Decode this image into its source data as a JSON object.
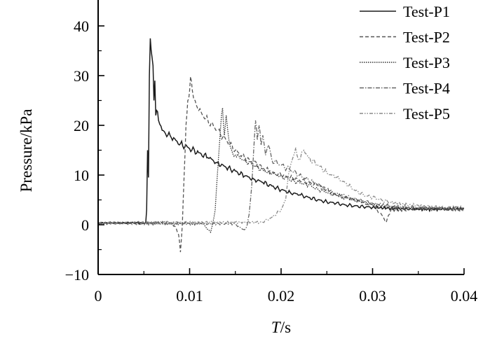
{
  "chart_data": {
    "type": "line",
    "title": "",
    "xlabel_italic": "T",
    "xlabel_unit": "/s",
    "ylabel": "Pressure/kPa",
    "xlim": [
      0,
      0.04
    ],
    "ylim": [
      -10,
      45
    ],
    "x_ticks": [
      0,
      0.01,
      0.02,
      0.03,
      0.04
    ],
    "x_tick_labels": [
      "0",
      "0.01",
      "0.02",
      "0.03",
      "0.04"
    ],
    "y_ticks": [
      -10,
      0,
      10,
      20,
      30,
      40
    ],
    "y_tick_labels": [
      "−10",
      "0",
      "10",
      "20",
      "30",
      "40"
    ],
    "grid": false,
    "legend_position": "top-right",
    "series": [
      {
        "name": "Test-P1",
        "color": "#1a1a1a",
        "dash": "solid",
        "points": [
          [
            0,
            0.4
          ],
          [
            0.0052,
            0.4
          ],
          [
            0.0053,
            3
          ],
          [
            0.0054,
            15
          ],
          [
            0.0055,
            9.5
          ],
          [
            0.0056,
            30
          ],
          [
            0.0057,
            37.5
          ],
          [
            0.0058,
            35
          ],
          [
            0.006,
            32
          ],
          [
            0.0061,
            25
          ],
          [
            0.0062,
            29
          ],
          [
            0.0063,
            22
          ],
          [
            0.0064,
            23
          ],
          [
            0.0066,
            21
          ],
          [
            0.007,
            19
          ],
          [
            0.008,
            17.5
          ],
          [
            0.009,
            16.3
          ],
          [
            0.01,
            15.3
          ],
          [
            0.011,
            14.5
          ],
          [
            0.012,
            13.5
          ],
          [
            0.013,
            12.5
          ],
          [
            0.014,
            11.5
          ],
          [
            0.015,
            10.8
          ],
          [
            0.016,
            9.8
          ],
          [
            0.017,
            9.2
          ],
          [
            0.018,
            8.5
          ],
          [
            0.019,
            7.8
          ],
          [
            0.02,
            7.0
          ],
          [
            0.021,
            6.5
          ],
          [
            0.022,
            6.0
          ],
          [
            0.023,
            5.5
          ],
          [
            0.024,
            5.0
          ],
          [
            0.025,
            4.6
          ],
          [
            0.026,
            4.3
          ],
          [
            0.027,
            4.0
          ],
          [
            0.028,
            3.8
          ],
          [
            0.029,
            3.6
          ],
          [
            0.03,
            3.5
          ],
          [
            0.032,
            3.3
          ],
          [
            0.034,
            3.2
          ],
          [
            0.036,
            3.1
          ],
          [
            0.038,
            3.2
          ],
          [
            0.04,
            3.2
          ]
        ]
      },
      {
        "name": "Test-P2",
        "color": "#555555",
        "dash": "5,3",
        "points": [
          [
            0,
            0.4
          ],
          [
            0.008,
            0.4
          ],
          [
            0.0085,
            -0.5
          ],
          [
            0.0088,
            -2
          ],
          [
            0.009,
            -5.5
          ],
          [
            0.0092,
            0
          ],
          [
            0.0094,
            10
          ],
          [
            0.0096,
            20
          ],
          [
            0.0098,
            25
          ],
          [
            0.01,
            27
          ],
          [
            0.0101,
            29.8
          ],
          [
            0.0103,
            27
          ],
          [
            0.0106,
            25
          ],
          [
            0.011,
            23
          ],
          [
            0.012,
            21
          ],
          [
            0.013,
            19
          ],
          [
            0.014,
            17
          ],
          [
            0.015,
            15
          ],
          [
            0.016,
            13.5
          ],
          [
            0.017,
            12.5
          ],
          [
            0.018,
            11.5
          ],
          [
            0.019,
            10.5
          ],
          [
            0.02,
            10
          ],
          [
            0.021,
            9.5
          ],
          [
            0.022,
            9
          ],
          [
            0.023,
            8.5
          ],
          [
            0.024,
            8
          ],
          [
            0.025,
            7
          ],
          [
            0.026,
            6
          ],
          [
            0.027,
            5.5
          ],
          [
            0.028,
            5
          ],
          [
            0.029,
            4.5
          ],
          [
            0.03,
            4
          ],
          [
            0.031,
            2
          ],
          [
            0.0315,
            0.5
          ],
          [
            0.032,
            3
          ],
          [
            0.034,
            3
          ],
          [
            0.036,
            3.5
          ],
          [
            0.038,
            3
          ],
          [
            0.04,
            3
          ]
        ]
      },
      {
        "name": "Test-P3",
        "color": "#333333",
        "dash": "1.5,1.5",
        "points": [
          [
            0,
            0.3
          ],
          [
            0.0115,
            0.3
          ],
          [
            0.012,
            -1
          ],
          [
            0.0123,
            -1.5
          ],
          [
            0.0125,
            0
          ],
          [
            0.0128,
            3
          ],
          [
            0.0131,
            12
          ],
          [
            0.0134,
            20
          ],
          [
            0.0136,
            23.5
          ],
          [
            0.0138,
            18
          ],
          [
            0.014,
            22
          ],
          [
            0.0143,
            17
          ],
          [
            0.0146,
            15
          ],
          [
            0.015,
            14
          ],
          [
            0.016,
            13
          ],
          [
            0.017,
            12
          ],
          [
            0.018,
            11
          ],
          [
            0.019,
            10.3
          ],
          [
            0.02,
            9.8
          ],
          [
            0.021,
            9
          ],
          [
            0.022,
            8.5
          ],
          [
            0.023,
            8
          ],
          [
            0.024,
            7.2
          ],
          [
            0.025,
            6.5
          ],
          [
            0.026,
            6
          ],
          [
            0.027,
            5.5
          ],
          [
            0.028,
            5
          ],
          [
            0.029,
            4.5
          ],
          [
            0.03,
            4
          ],
          [
            0.032,
            3.5
          ],
          [
            0.034,
            3.3
          ],
          [
            0.036,
            3.2
          ],
          [
            0.038,
            3.2
          ],
          [
            0.04,
            3.2
          ]
        ]
      },
      {
        "name": "Test-P4",
        "color": "#666666",
        "dash": "6,2,1.5,2",
        "points": [
          [
            0,
            0.2
          ],
          [
            0.015,
            0.2
          ],
          [
            0.0155,
            -0.5
          ],
          [
            0.016,
            -1
          ],
          [
            0.0163,
            0
          ],
          [
            0.0165,
            2
          ],
          [
            0.0168,
            8
          ],
          [
            0.017,
            15
          ],
          [
            0.0172,
            21
          ],
          [
            0.0174,
            17
          ],
          [
            0.0176,
            20
          ],
          [
            0.0178,
            16
          ],
          [
            0.018,
            18
          ],
          [
            0.0183,
            14
          ],
          [
            0.0186,
            16
          ],
          [
            0.019,
            13
          ],
          [
            0.02,
            12
          ],
          [
            0.021,
            11
          ],
          [
            0.022,
            10
          ],
          [
            0.023,
            9
          ],
          [
            0.024,
            8
          ],
          [
            0.025,
            7
          ],
          [
            0.026,
            6.3
          ],
          [
            0.027,
            5.8
          ],
          [
            0.028,
            5.2
          ],
          [
            0.029,
            4.8
          ],
          [
            0.03,
            4.3
          ],
          [
            0.032,
            3.8
          ],
          [
            0.034,
            3.5
          ],
          [
            0.036,
            3.3
          ],
          [
            0.038,
            3.3
          ],
          [
            0.04,
            3.2
          ]
        ]
      },
      {
        "name": "Test-P5",
        "color": "#888888",
        "dash": "5,2,1.5,2,1.5,2",
        "points": [
          [
            0,
            0.5
          ],
          [
            0.018,
            0.5
          ],
          [
            0.019,
            1.5
          ],
          [
            0.02,
            3
          ],
          [
            0.0205,
            5
          ],
          [
            0.0208,
            10
          ],
          [
            0.0212,
            13
          ],
          [
            0.0216,
            15.5
          ],
          [
            0.022,
            13
          ],
          [
            0.0225,
            15
          ],
          [
            0.023,
            13.5
          ],
          [
            0.024,
            12
          ],
          [
            0.025,
            10.5
          ],
          [
            0.026,
            9.5
          ],
          [
            0.027,
            8.5
          ],
          [
            0.028,
            7
          ],
          [
            0.029,
            6
          ],
          [
            0.03,
            5.5
          ],
          [
            0.031,
            5
          ],
          [
            0.032,
            4.5
          ],
          [
            0.034,
            4
          ],
          [
            0.036,
            3.7
          ],
          [
            0.038,
            3.5
          ],
          [
            0.04,
            3.5
          ]
        ]
      }
    ]
  }
}
